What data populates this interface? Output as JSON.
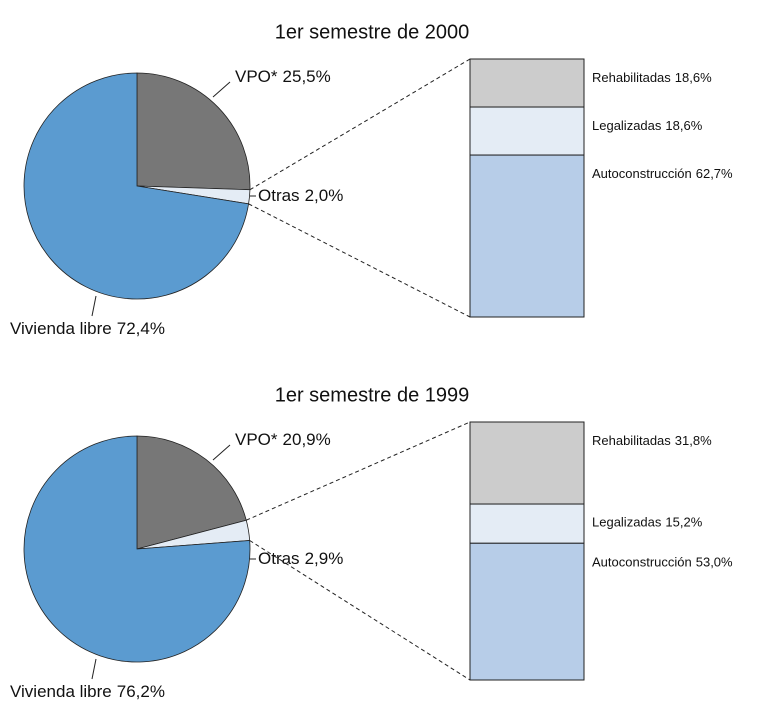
{
  "chart_data": [
    {
      "type": "pie",
      "title": "1er semestre de 2000",
      "categories": [
        "VPO*",
        "Otras",
        "Vivienda libre"
      ],
      "values": [
        25.5,
        2.0,
        72.4
      ],
      "value_labels": [
        "25,5%",
        "2,0%",
        "72,4%"
      ],
      "colors": [
        "#777777",
        "#e4ecf5",
        "#5b9bd0"
      ],
      "breakdown": {
        "type": "bar",
        "categories": [
          "Rehabilitadas",
          "Legalizadas",
          "Autoconstrucción"
        ],
        "values": [
          18.6,
          18.6,
          62.7
        ],
        "value_labels": [
          "18,6%",
          "18,6%",
          "62,7%"
        ],
        "colors": [
          "#cccccc",
          "#e4ecf5",
          "#b7cde8"
        ]
      }
    },
    {
      "type": "pie",
      "title": "1er semestre de 1999",
      "categories": [
        "VPO*",
        "Otras",
        "Vivienda libre"
      ],
      "values": [
        20.9,
        2.9,
        76.2
      ],
      "value_labels": [
        "20,9%",
        "2,9%",
        "76,2%"
      ],
      "colors": [
        "#777777",
        "#e4ecf5",
        "#5b9bd0"
      ],
      "breakdown": {
        "type": "bar",
        "categories": [
          "Rehabilitadas",
          "Legalizadas",
          "Autoconstrucción"
        ],
        "values": [
          31.8,
          15.2,
          53.0
        ],
        "value_labels": [
          "31,8%",
          "15,2%",
          "53,0%"
        ],
        "colors": [
          "#cccccc",
          "#e4ecf5",
          "#b7cde8"
        ]
      }
    }
  ]
}
